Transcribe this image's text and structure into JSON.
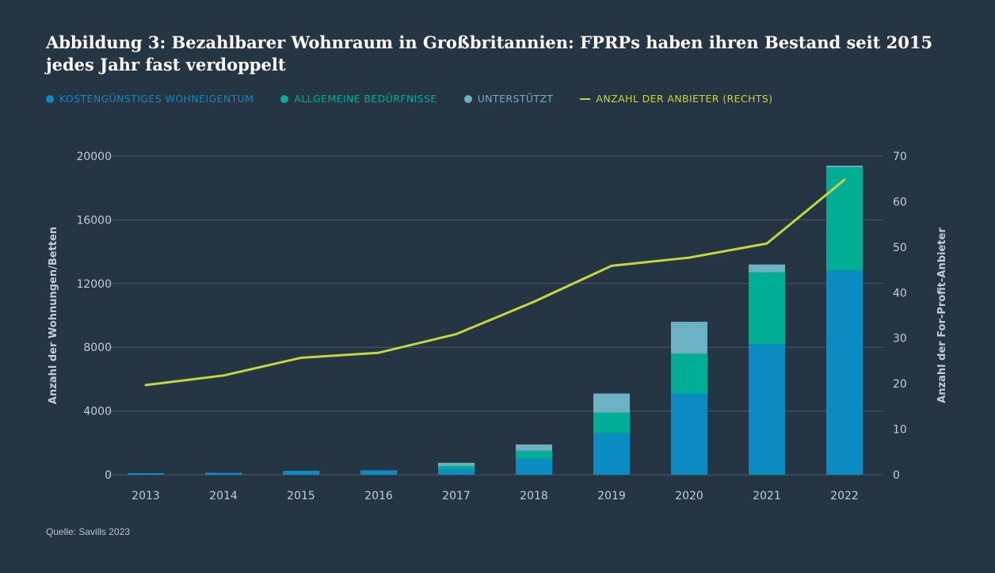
{
  "title": "Abbildung 3: Bezahlbarer Wohnraum in Großbritannien: FPRPs haben ihren Bestand seit 2015 jedes Jahr fast verdoppelt",
  "source": "Quelle: Savills 2023",
  "colors": {
    "kostenguenstig": "#0a8cc2",
    "allgemein": "#00ae96",
    "unterstuetzt": "#6cb2c4",
    "anbieter": "#c2d83a",
    "grid": "#4a5a69"
  },
  "legend": [
    {
      "label": "KOSTENGÜNSTIGES WOHNEIGENTUM",
      "shape": "dot",
      "color": "#0a8cc2"
    },
    {
      "label": "ALLGEMEINE BEDÜRFNISSE",
      "shape": "dot",
      "color": "#00ae96"
    },
    {
      "label": "UNTERSTÜTZT",
      "shape": "dot",
      "color": "#6cb2c4"
    },
    {
      "label": "ANZAHL DER ANBIETER (RECHTS)",
      "shape": "line",
      "color": "#c2d83a"
    }
  ],
  "chart_data": {
    "type": "bar",
    "stacked": true,
    "categories": [
      "2013",
      "2014",
      "2015",
      "2016",
      "2017",
      "2018",
      "2019",
      "2020",
      "2021",
      "2022"
    ],
    "series": [
      {
        "name": "KOSTENGÜNSTIGES WOHNEIGENTUM",
        "axis": "left",
        "values": [
          100,
          120,
          250,
          280,
          350,
          1000,
          2600,
          5100,
          8200,
          12800
        ]
      },
      {
        "name": "ALLGEMEINE BEDÜRFNISSE",
        "axis": "left",
        "values": [
          0,
          0,
          0,
          0,
          200,
          500,
          1300,
          2500,
          4500,
          6500
        ]
      },
      {
        "name": "UNTERSTÜTZT",
        "axis": "left",
        "values": [
          0,
          0,
          0,
          0,
          200,
          400,
          1200,
          2000,
          500,
          100
        ]
      },
      {
        "name": "ANZAHL DER ANBIETER (RECHTS)",
        "type": "line",
        "axis": "right",
        "values": [
          19.7,
          21.8,
          25.7,
          26.8,
          30.9,
          38,
          45.9,
          47.7,
          50.8,
          64.8
        ]
      }
    ],
    "ylabel": "Anzahl der Wohnungen/Betten",
    "ylim": [
      0,
      20000
    ],
    "yticks": [
      "0",
      "4000",
      "8000",
      "12000",
      "16000",
      "20000"
    ],
    "y2label": "Anzahl der For-Profit-Anbieter",
    "y2lim": [
      0,
      70
    ],
    "y2ticks": [
      "0",
      "10",
      "20",
      "30",
      "40",
      "50",
      "60",
      "70"
    ],
    "grid": true,
    "legend_position": "top-left"
  }
}
